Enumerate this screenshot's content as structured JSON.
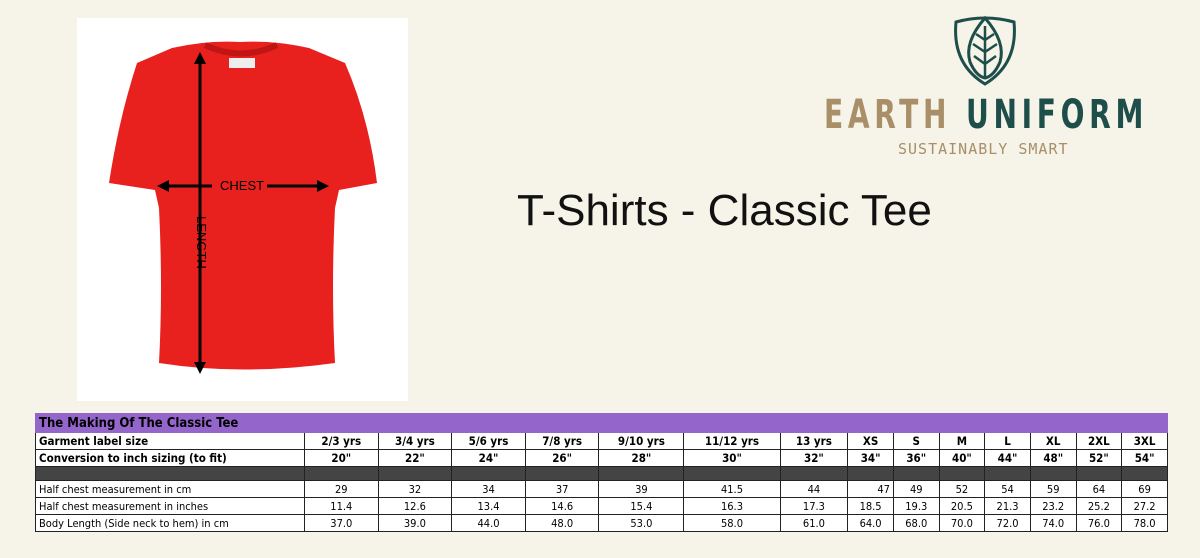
{
  "title": "T-Shirts - Classic Tee",
  "logo": {
    "word1": "EARTH",
    "word2": "UNIFORM",
    "tagline": "SUSTAINABLY SMART",
    "color1": "#a88f68",
    "color2": "#1d4e4a"
  },
  "image": {
    "chest_label": "CHEST",
    "length_label": "LENGTH",
    "shirt_color": "#e8201e"
  },
  "table": {
    "title": "The Making Of The Classic Tee",
    "header_label": "Garment label size",
    "sizes": [
      "2/3 yrs",
      "3/4 yrs",
      "5/6 yrs",
      "7/8 yrs",
      "9/10 yrs",
      "11/12 yrs",
      "13 yrs",
      "XS",
      "S",
      "M",
      "L",
      "XL",
      "2XL",
      "3XL"
    ],
    "conversion_label": "Conversion to inch sizing (to fit)",
    "conversion": [
      "20\"",
      "22\"",
      "24\"",
      "26\"",
      "28\"",
      "30\"",
      "32\"",
      "34\"",
      "36\"",
      "40\"",
      "44\"",
      "48\"",
      "52\"",
      "54\""
    ],
    "rows": [
      {
        "label": "Half chest measurement in cm",
        "values": [
          "29",
          "32",
          "34",
          "37",
          "39",
          "41.5",
          "44",
          "47",
          "49",
          "52",
          "54",
          "59",
          "64",
          "69"
        ]
      },
      {
        "label": "Half chest measurement in inches",
        "values": [
          "11.4",
          "12.6",
          "13.4",
          "14.6",
          "15.4",
          "16.3",
          "17.3",
          "18.5",
          "19.3",
          "20.5",
          "21.3",
          "23.2",
          "25.2",
          "27.2"
        ]
      },
      {
        "label": "Body Length (Side neck to hem) in cm",
        "values": [
          "37.0",
          "39.0",
          "44.0",
          "48.0",
          "53.0",
          "58.0",
          "61.0",
          "64.0",
          "68.0",
          "70.0",
          "72.0",
          "74.0",
          "76.0",
          "78.0"
        ]
      }
    ]
  }
}
